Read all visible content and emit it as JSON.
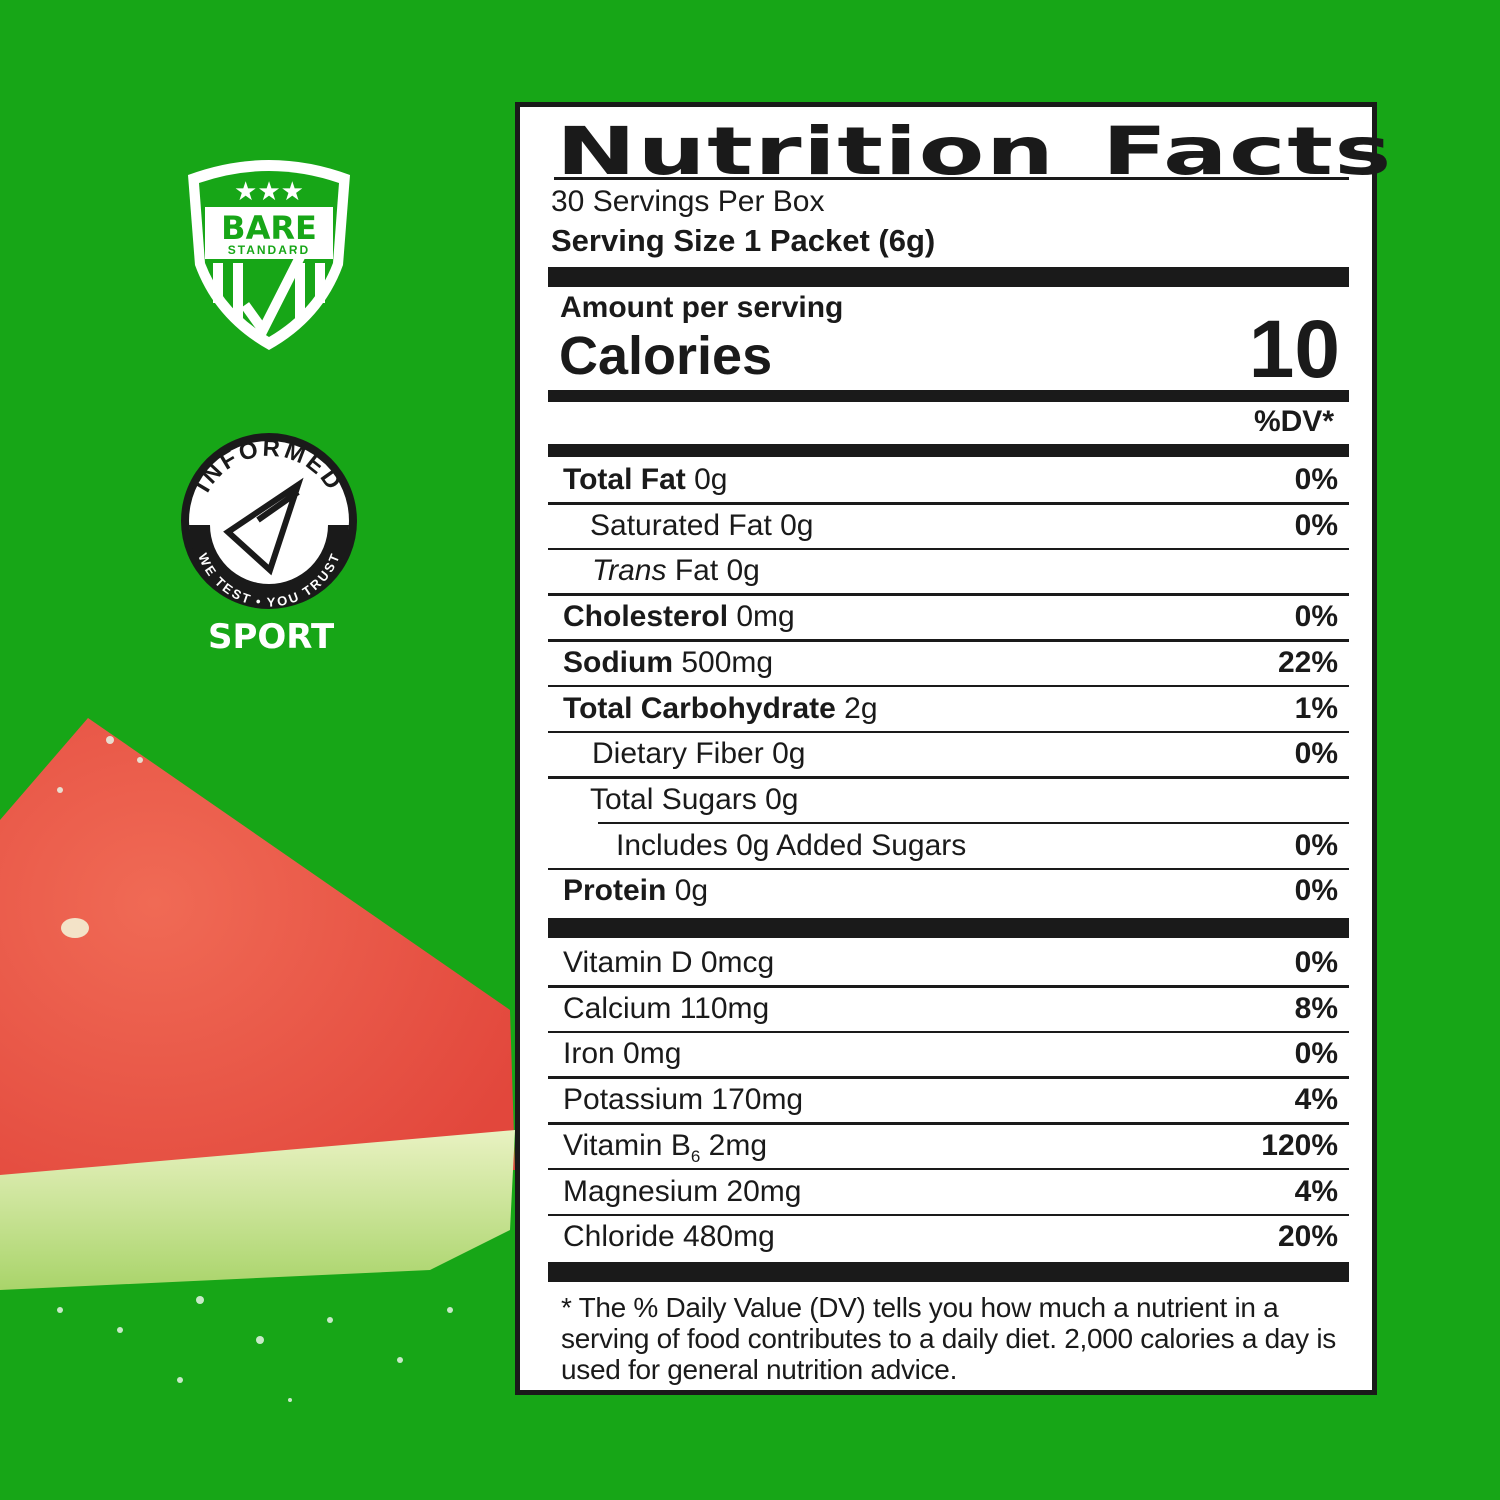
{
  "colors": {
    "background": "#17a617",
    "ink": "#1a1a1a",
    "label": "#ffffff"
  },
  "logos": {
    "bare_standard": {
      "line1": "BARE",
      "line2": "STANDARD"
    },
    "informed_sport": {
      "top": "INFORMED",
      "ring": "WE TEST • YOU TRUST",
      "bottom": "SPORT"
    }
  },
  "label": {
    "title": "Nutrition Facts",
    "servings": "30 Servings Per Box",
    "serving_size": "Serving Size 1 Packet (6g)",
    "amount_per_serving": "Amount per serving",
    "calories_label": "Calories",
    "calories_value": "10",
    "dv_header": "%DV*",
    "nutrients": [
      {
        "name": "Total Fat",
        "amount": "0g",
        "dv": "0%"
      },
      {
        "name": "Saturated Fat",
        "amount": "0g",
        "dv": "0%"
      },
      {
        "name": "Trans",
        "amount": "Fat 0g",
        "dv": ""
      },
      {
        "name": "Cholesterol",
        "amount": "0mg",
        "dv": "0%"
      },
      {
        "name": "Sodium",
        "amount": "500mg",
        "dv": "22%"
      },
      {
        "name": "Total Carbohydrate",
        "amount": "2g",
        "dv": "1%"
      },
      {
        "name": "Dietary Fiber",
        "amount": "0g",
        "dv": "0%"
      },
      {
        "name": "Total Sugars",
        "amount": "0g",
        "dv": ""
      },
      {
        "name": "Includes 0g Added Sugars",
        "amount": "",
        "dv": "0%"
      },
      {
        "name": "Protein",
        "amount": "0g",
        "dv": "0%"
      }
    ],
    "vitamins": [
      {
        "name": "Vitamin D 0mcg",
        "dv": "0%"
      },
      {
        "name": "Calcium 110mg",
        "dv": "8%"
      },
      {
        "name": "Iron 0mg",
        "dv": "0%"
      },
      {
        "name": "Potassium 170mg",
        "dv": "4%"
      },
      {
        "name": "Vitamin B",
        "sub": "6",
        "after": " 2mg",
        "dv": "120%"
      },
      {
        "name": "Magnesium 20mg",
        "dv": "4%"
      },
      {
        "name": "Chloride 480mg",
        "dv": "20%"
      }
    ],
    "footnote": "* The % Daily Value (DV) tells you how much a nutrient in a serving of food contributes to a daily diet. 2,000 calories a day is used for general nutrition advice."
  }
}
